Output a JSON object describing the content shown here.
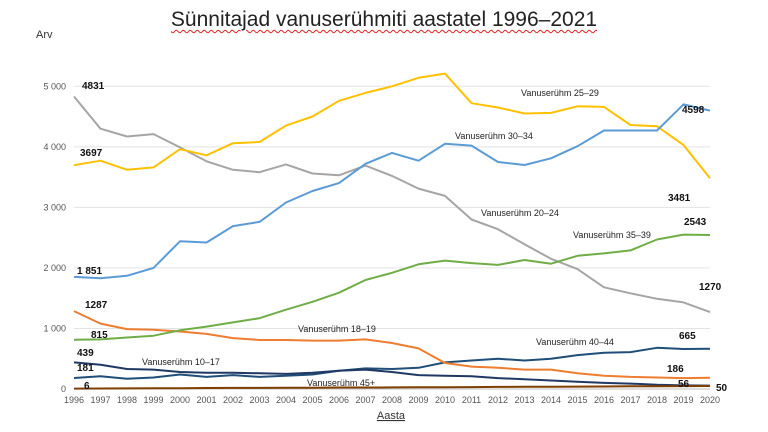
{
  "chart_data": {
    "type": "line",
    "title": "Sünnitajad vanuserühmiti aastatel 1996–2021",
    "xlabel": "Aasta",
    "ylabel": "Arv",
    "ylim": [
      0,
      5500
    ],
    "yticks": [
      0,
      1000,
      2000,
      3000,
      4000,
      5000
    ],
    "ytick_labels": [
      "0",
      "1 000",
      "2 000",
      "3 000",
      "4 000",
      "5 000"
    ],
    "x": [
      1996,
      1997,
      1998,
      1999,
      2000,
      2001,
      2002,
      2003,
      2004,
      2005,
      2006,
      2007,
      2008,
      2009,
      2010,
      2011,
      2012,
      2013,
      2014,
      2015,
      2016,
      2017,
      2018,
      2019,
      2020
    ],
    "grid": "horizontal",
    "legend": "inline labels",
    "series": [
      {
        "name": "Vanuserühm 10–17",
        "color": "#1f4e79",
        "values": [
          181,
          210,
          170,
          190,
          240,
          200,
          230,
          200,
          220,
          240,
          300,
          340,
          330,
          350,
          440,
          470,
          500,
          470,
          500,
          560,
          600,
          610,
          680,
          660,
          665
        ],
        "start_label": "181",
        "end_label": "665"
      },
      {
        "name": "Vanuserühm 18–19",
        "color": "#ed7d31",
        "values": [
          1287,
          1080,
          990,
          980,
          950,
          910,
          840,
          810,
          810,
          800,
          800,
          820,
          760,
          670,
          430,
          370,
          350,
          320,
          320,
          260,
          220,
          200,
          190,
          180,
          186
        ],
        "start_label": "1287",
        "end_label": "186"
      },
      {
        "name": "Vanuserühm 20–24",
        "color": "#a5a5a5",
        "values": [
          4831,
          4300,
          4170,
          4210,
          3990,
          3760,
          3620,
          3580,
          3710,
          3560,
          3530,
          3690,
          3520,
          3310,
          3190,
          2800,
          2640,
          2390,
          2150,
          1980,
          1680,
          1580,
          1490,
          1430,
          1270
        ],
        "start_label": "4831",
        "end_label": "1270"
      },
      {
        "name": "Vanuserühm 25–29",
        "color": "#ffc000",
        "values": [
          3697,
          3770,
          3620,
          3660,
          3960,
          3860,
          4060,
          4080,
          4350,
          4500,
          4760,
          4890,
          5000,
          5140,
          5210,
          4720,
          4650,
          4550,
          4560,
          4670,
          4660,
          4360,
          4340,
          4030,
          3481
        ],
        "start_label": "3697",
        "end_label": "3481"
      },
      {
        "name": "Vanuserühm 30–34",
        "color": "#5b9bd5",
        "values": [
          1851,
          1830,
          1870,
          2000,
          2440,
          2420,
          2690,
          2760,
          3080,
          3270,
          3400,
          3720,
          3900,
          3770,
          4050,
          4020,
          3750,
          3700,
          3810,
          4010,
          4270,
          4270,
          4270,
          4700,
          4598
        ],
        "start_label": "1 851",
        "end_label": "4598"
      },
      {
        "name": "Vanuserühm 35–39",
        "color": "#70ad47",
        "values": [
          815,
          820,
          850,
          880,
          970,
          1030,
          1100,
          1170,
          1310,
          1440,
          1590,
          1800,
          1920,
          2060,
          2120,
          2080,
          2050,
          2130,
          2070,
          2200,
          2240,
          2290,
          2470,
          2550,
          2543
        ],
        "start_label": "815",
        "end_label": "2543"
      },
      {
        "name": "Vanuserühm 40–44",
        "color": "#203864",
        "values": [
          439,
          400,
          330,
          320,
          280,
          270,
          270,
          260,
          250,
          270,
          300,
          320,
          280,
          230,
          220,
          210,
          180,
          160,
          140,
          120,
          100,
          90,
          70,
          60,
          56
        ],
        "start_label": "439",
        "end_label": "56"
      },
      {
        "name": "Vanuserühm 45+",
        "color": "#7f3f00",
        "values": [
          6,
          8,
          10,
          12,
          14,
          16,
          18,
          18,
          20,
          22,
          24,
          25,
          26,
          28,
          30,
          32,
          34,
          36,
          38,
          40,
          42,
          44,
          46,
          48,
          50
        ],
        "start_label": "6",
        "end_label": "50"
      }
    ]
  }
}
